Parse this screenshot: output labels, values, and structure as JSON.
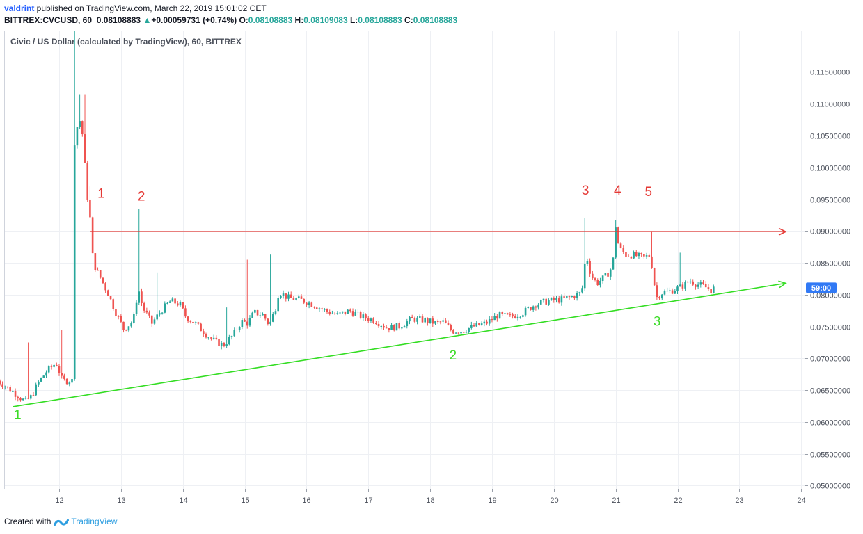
{
  "header": {
    "author": "valdrint",
    "published_text": " published on TradingView.com, March 22, 2019 15:01:02 CET",
    "symbol": "BITTREX:CVCUSD, 60",
    "last": "0.08108883",
    "change_arrow": "▲",
    "change": "+0.00059731 (+0.74%)",
    "o_label": "O:",
    "o_value": "0.08108883",
    "h_label": "H:",
    "h_value": "0.08109083",
    "l_label": "L:",
    "l_value": "0.08108883",
    "c_label": "C:",
    "c_value": "0.08108883"
  },
  "legend_title": "Civic / US Dollar (calculated by TradingView), 60, BITTREX",
  "countdown": "59:00",
  "footer": {
    "created_with": "Created with",
    "brand": "TradingView"
  },
  "colors": {
    "up": "#26a69a",
    "down": "#ef5350",
    "resistance": "#e53935",
    "support": "#33dd22",
    "price_tag": "#3179f5"
  },
  "chart_data": {
    "type": "candlestick",
    "x_ticks": [
      "12",
      "13",
      "14",
      "15",
      "16",
      "17",
      "18",
      "19",
      "20",
      "21",
      "22",
      "23",
      "24"
    ],
    "y_ticks": [
      "0.11500000",
      "0.11000000",
      "0.10500000",
      "0.10000000",
      "0.09500000",
      "0.09000000",
      "0.08500000",
      "0.08000000",
      "0.07500000",
      "0.07000000",
      "0.06500000",
      "0.06000000",
      "0.05500000",
      "0.05000000"
    ],
    "ylim": [
      0.0495,
      0.1215
    ],
    "xlim_days": [
      11,
      24.05
    ],
    "last_price": 0.08108883,
    "price_path": [
      [
        11.0,
        0.0665
      ],
      [
        11.15,
        0.0655
      ],
      [
        11.35,
        0.064
      ],
      [
        11.45,
        0.0632
      ],
      [
        11.55,
        0.064
      ],
      [
        11.65,
        0.066
      ],
      [
        11.8,
        0.068
      ],
      [
        11.95,
        0.0693
      ],
      [
        12.05,
        0.0665
      ],
      [
        12.15,
        0.0665
      ],
      [
        12.22,
        0.0665
      ],
      [
        12.25,
        0.104
      ],
      [
        12.32,
        0.108
      ],
      [
        12.38,
        0.105
      ],
      [
        12.45,
        0.096
      ],
      [
        12.5,
        0.092
      ],
      [
        12.55,
        0.085
      ],
      [
        12.65,
        0.083
      ],
      [
        12.8,
        0.08
      ],
      [
        12.9,
        0.0775
      ],
      [
        13.05,
        0.0745
      ],
      [
        13.2,
        0.076
      ],
      [
        13.28,
        0.081
      ],
      [
        13.35,
        0.078
      ],
      [
        13.5,
        0.0755
      ],
      [
        13.65,
        0.0775
      ],
      [
        13.8,
        0.079
      ],
      [
        13.95,
        0.0785
      ],
      [
        14.05,
        0.0765
      ],
      [
        14.2,
        0.0755
      ],
      [
        14.35,
        0.074
      ],
      [
        14.5,
        0.0728
      ],
      [
        14.65,
        0.072
      ],
      [
        14.8,
        0.0735
      ],
      [
        14.95,
        0.0758
      ],
      [
        15.05,
        0.0755
      ],
      [
        15.15,
        0.0772
      ],
      [
        15.3,
        0.0768
      ],
      [
        15.4,
        0.0752
      ],
      [
        15.5,
        0.078
      ],
      [
        15.55,
        0.0805
      ],
      [
        15.7,
        0.0795
      ],
      [
        15.9,
        0.0792
      ],
      [
        16.1,
        0.0785
      ],
      [
        16.3,
        0.0775
      ],
      [
        16.5,
        0.0768
      ],
      [
        16.7,
        0.0775
      ],
      [
        16.9,
        0.0765
      ],
      [
        17.1,
        0.076
      ],
      [
        17.3,
        0.0748
      ],
      [
        17.5,
        0.075
      ],
      [
        17.7,
        0.0762
      ],
      [
        17.9,
        0.076
      ],
      [
        18.1,
        0.0755
      ],
      [
        18.2,
        0.0758
      ],
      [
        18.35,
        0.0743
      ],
      [
        18.5,
        0.0743
      ],
      [
        18.7,
        0.075
      ],
      [
        18.9,
        0.0755
      ],
      [
        19.1,
        0.0768
      ],
      [
        19.3,
        0.0765
      ],
      [
        19.5,
        0.0772
      ],
      [
        19.7,
        0.0785
      ],
      [
        19.9,
        0.079
      ],
      [
        20.1,
        0.0792
      ],
      [
        20.3,
        0.0797
      ],
      [
        20.45,
        0.0803
      ],
      [
        20.52,
        0.0865
      ],
      [
        20.6,
        0.083
      ],
      [
        20.7,
        0.0818
      ],
      [
        20.85,
        0.083
      ],
      [
        20.95,
        0.0845
      ],
      [
        21.0,
        0.0908
      ],
      [
        21.05,
        0.0875
      ],
      [
        21.15,
        0.0863
      ],
      [
        21.3,
        0.0862
      ],
      [
        21.45,
        0.0858
      ],
      [
        21.55,
        0.0862
      ],
      [
        21.6,
        0.0838
      ],
      [
        21.65,
        0.0795
      ],
      [
        21.75,
        0.0803
      ],
      [
        21.9,
        0.0806
      ],
      [
        22.05,
        0.0812
      ],
      [
        22.2,
        0.0822
      ],
      [
        22.3,
        0.0817
      ],
      [
        22.45,
        0.0812
      ],
      [
        22.55,
        0.0807
      ],
      [
        22.6,
        0.08108883
      ]
    ],
    "wick_spikes": [
      [
        11.5,
        0.0725
      ],
      [
        12.05,
        0.0745
      ],
      [
        12.22,
        0.0905
      ],
      [
        12.25,
        0.1215
      ],
      [
        12.32,
        0.1115
      ],
      [
        12.4,
        0.1115
      ],
      [
        12.5,
        0.097
      ],
      [
        13.28,
        0.0935
      ],
      [
        13.6,
        0.0835
      ],
      [
        14.7,
        0.078
      ],
      [
        15.05,
        0.0855
      ],
      [
        15.42,
        0.0863
      ],
      [
        20.52,
        0.092
      ],
      [
        21.02,
        0.0917
      ],
      [
        21.57,
        0.09
      ],
      [
        22.05,
        0.0866
      ]
    ],
    "resistance_line": {
      "x": [
        12.5,
        23.75
      ],
      "y": [
        0.0899,
        0.0899
      ]
    },
    "support_line": {
      "x": [
        11.25,
        23.75
      ],
      "y": [
        0.0624,
        0.0818
      ]
    },
    "annotations": [
      {
        "text": "1",
        "x": 12.68,
        "y": 0.0952,
        "color": "red"
      },
      {
        "text": "2",
        "x": 13.33,
        "y": 0.0948,
        "color": "red"
      },
      {
        "text": "3",
        "x": 20.51,
        "y": 0.0957,
        "color": "red"
      },
      {
        "text": "4",
        "x": 21.03,
        "y": 0.0957,
        "color": "red"
      },
      {
        "text": "5",
        "x": 21.53,
        "y": 0.0955,
        "color": "red"
      },
      {
        "text": "1",
        "x": 11.33,
        "y": 0.0605,
        "color": "green"
      },
      {
        "text": "2",
        "x": 18.37,
        "y": 0.0698,
        "color": "green"
      },
      {
        "text": "3",
        "x": 21.67,
        "y": 0.0751,
        "color": "green"
      }
    ]
  }
}
